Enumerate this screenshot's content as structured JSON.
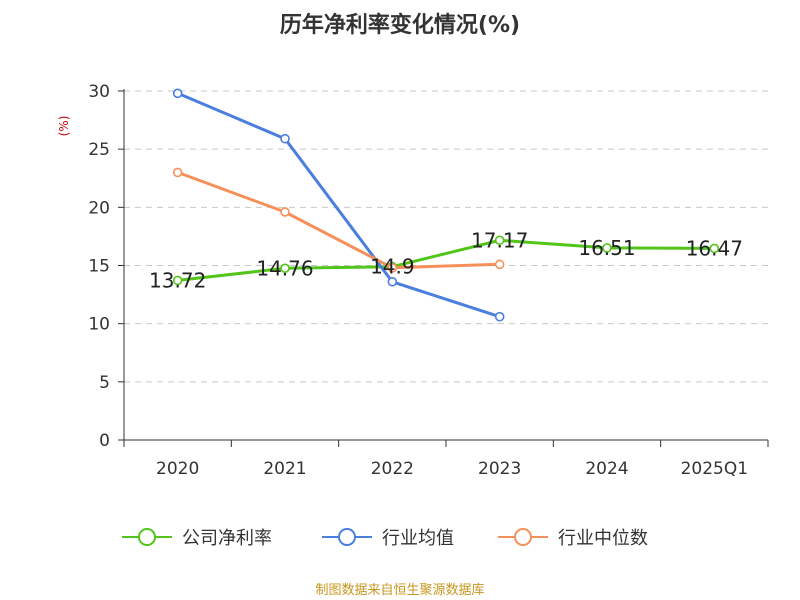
{
  "chart_data": {
    "type": "line",
    "title": "历年净利率变化情况(%)",
    "ylabel": "(%)",
    "xlabel": "",
    "categories": [
      "2020",
      "2021",
      "2022",
      "2023",
      "2024",
      "2025Q1"
    ],
    "ylim": [
      0,
      30
    ],
    "yticks": [
      0,
      5,
      10,
      15,
      20,
      25,
      30
    ],
    "grid": true,
    "legend_position": "bottom",
    "series": [
      {
        "name": "公司净利率",
        "color": "#52c41a",
        "values": [
          13.72,
          14.76,
          14.9,
          17.17,
          16.51,
          16.47
        ],
        "labels": [
          "13.72",
          "14.76",
          "14.9",
          "17.17",
          "16.51",
          "16.47"
        ]
      },
      {
        "name": "行业均值",
        "color": "#4a7fe0",
        "values": [
          29.8,
          25.9,
          13.6,
          10.6,
          null,
          null
        ]
      },
      {
        "name": "行业中位数",
        "color": "#f5905a",
        "values": [
          23.0,
          19.6,
          14.8,
          15.1,
          null,
          null
        ]
      }
    ]
  },
  "source_note": "制图数据来自恒生聚源数据库"
}
